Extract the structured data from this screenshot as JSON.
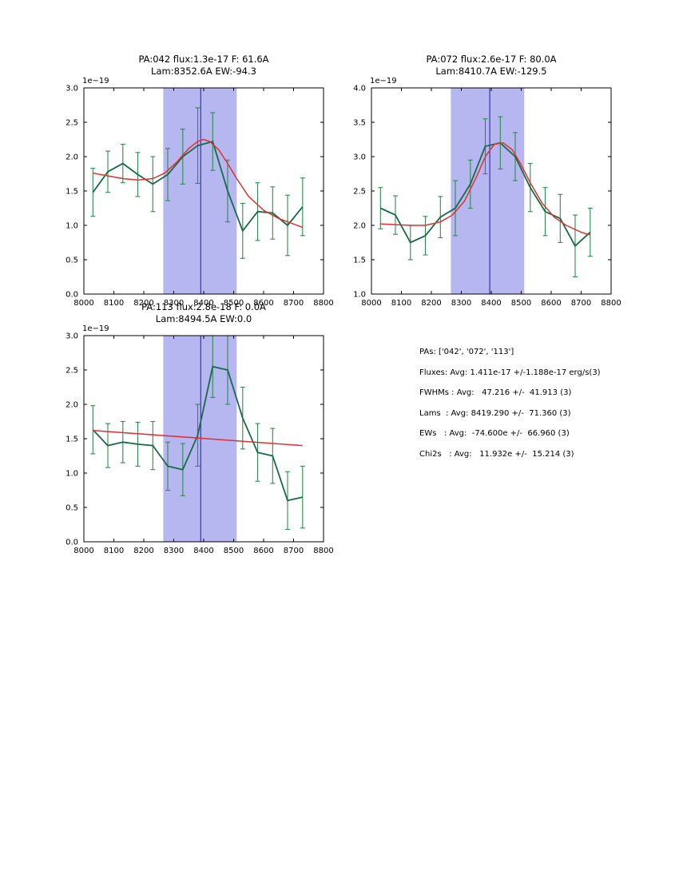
{
  "figure": {
    "background": "#ffffff",
    "band_color": "#b6b6f0",
    "vline_color": "#3333bb",
    "axis_color": "#000000"
  },
  "chart_data": [
    {
      "type": "line",
      "title_line1": "PA:042 flux:1.3e-17 F: 61.6A",
      "title_line2": "Lam:8352.6A EW:-94.3",
      "scale_label": "1e−19",
      "xlabel": "",
      "ylabel": "",
      "xlim": [
        8000,
        8800
      ],
      "ylim": [
        0.0,
        3.0
      ],
      "xticks": [
        8000,
        8100,
        8200,
        8300,
        8400,
        8500,
        8600,
        8700,
        8800
      ],
      "yticks": [
        0.0,
        0.5,
        1.0,
        1.5,
        2.0,
        2.5,
        3.0
      ],
      "band": {
        "x0": 8265,
        "x1": 8510
      },
      "vline_x": 8390,
      "series": [
        {
          "name": "spectrum",
          "color": "#176a47",
          "err_color": "#2e8b50",
          "line_width": 1.8,
          "x": [
            8030,
            8080,
            8130,
            8180,
            8230,
            8280,
            8330,
            8380,
            8430,
            8480,
            8530,
            8580,
            8630,
            8680,
            8730
          ],
          "y": [
            1.48,
            1.78,
            1.9,
            1.74,
            1.6,
            1.74,
            2.0,
            2.16,
            2.22,
            1.5,
            0.92,
            1.2,
            1.18,
            1.0,
            1.27
          ],
          "yerr": [
            0.35,
            0.3,
            0.28,
            0.32,
            0.4,
            0.38,
            0.4,
            0.55,
            0.42,
            0.45,
            0.4,
            0.42,
            0.38,
            0.44,
            0.42
          ]
        },
        {
          "name": "gaussian-fit",
          "color": "#e03030",
          "line_width": 1.5,
          "x": [
            8030,
            8080,
            8130,
            8180,
            8230,
            8270,
            8310,
            8350,
            8380,
            8400,
            8420,
            8450,
            8480,
            8510,
            8550,
            8600,
            8650,
            8700,
            8730
          ],
          "y": [
            1.76,
            1.72,
            1.68,
            1.66,
            1.68,
            1.76,
            1.92,
            2.12,
            2.22,
            2.25,
            2.22,
            2.1,
            1.9,
            1.68,
            1.42,
            1.22,
            1.1,
            1.02,
            0.97
          ]
        }
      ]
    },
    {
      "type": "line",
      "title_line1": "PA:072 flux:2.6e-17 F: 80.0A",
      "title_line2": "Lam:8410.7A EW:-129.5",
      "scale_label": "1e−19",
      "xlabel": "",
      "ylabel": "",
      "xlim": [
        8000,
        8800
      ],
      "ylim": [
        1.0,
        4.0
      ],
      "xticks": [
        8000,
        8100,
        8200,
        8300,
        8400,
        8500,
        8600,
        8700,
        8800
      ],
      "yticks": [
        1.0,
        1.5,
        2.0,
        2.5,
        3.0,
        3.5,
        4.0
      ],
      "band": {
        "x0": 8265,
        "x1": 8510
      },
      "vline_x": 8395,
      "series": [
        {
          "name": "spectrum",
          "color": "#176a47",
          "err_color": "#2e8b50",
          "line_width": 1.8,
          "x": [
            8030,
            8080,
            8130,
            8180,
            8230,
            8280,
            8330,
            8380,
            8430,
            8480,
            8530,
            8580,
            8630,
            8680,
            8730
          ],
          "y": [
            2.25,
            2.15,
            1.75,
            1.85,
            2.12,
            2.25,
            2.6,
            3.15,
            3.2,
            3.0,
            2.55,
            2.2,
            2.1,
            1.7,
            1.9
          ],
          "yerr": [
            0.3,
            0.28,
            0.25,
            0.28,
            0.3,
            0.4,
            0.35,
            0.4,
            0.38,
            0.35,
            0.35,
            0.35,
            0.35,
            0.45,
            0.35
          ]
        },
        {
          "name": "gaussian-fit",
          "color": "#e03030",
          "line_width": 1.5,
          "x": [
            8030,
            8080,
            8130,
            8180,
            8230,
            8270,
            8310,
            8350,
            8380,
            8410,
            8440,
            8470,
            8500,
            8530,
            8570,
            8610,
            8650,
            8700,
            8730
          ],
          "y": [
            2.02,
            2.01,
            2.0,
            2.0,
            2.05,
            2.15,
            2.35,
            2.7,
            3.0,
            3.18,
            3.2,
            3.1,
            2.88,
            2.62,
            2.32,
            2.12,
            2.0,
            1.9,
            1.86
          ]
        }
      ]
    },
    {
      "type": "line",
      "title_line1": "PA:113 flux:2.8e-18 F: 0.0A",
      "title_line2": "Lam:8494.5A EW:0.0",
      "scale_label": "1e−19",
      "xlabel": "",
      "ylabel": "",
      "xlim": [
        8000,
        8800
      ],
      "ylim": [
        0.0,
        3.0
      ],
      "xticks": [
        8000,
        8100,
        8200,
        8300,
        8400,
        8500,
        8600,
        8700,
        8800
      ],
      "yticks": [
        0.0,
        0.5,
        1.0,
        1.5,
        2.0,
        2.5,
        3.0
      ],
      "band": {
        "x0": 8265,
        "x1": 8510
      },
      "vline_x": 8390,
      "series": [
        {
          "name": "spectrum",
          "color": "#176a47",
          "err_color": "#2e8b50",
          "line_width": 1.8,
          "x": [
            8030,
            8080,
            8130,
            8180,
            8230,
            8280,
            8330,
            8380,
            8430,
            8480,
            8530,
            8580,
            8630,
            8680,
            8730
          ],
          "y": [
            1.63,
            1.4,
            1.45,
            1.42,
            1.4,
            1.1,
            1.05,
            1.55,
            2.55,
            2.5,
            1.8,
            1.3,
            1.25,
            0.6,
            0.65
          ],
          "yerr": [
            0.35,
            0.32,
            0.3,
            0.32,
            0.35,
            0.35,
            0.38,
            0.45,
            0.45,
            0.5,
            0.45,
            0.42,
            0.4,
            0.42,
            0.45
          ]
        },
        {
          "name": "flat-fit",
          "color": "#e03030",
          "line_width": 1.5,
          "x": [
            8030,
            8730
          ],
          "y": [
            1.62,
            1.4
          ]
        }
      ]
    }
  ],
  "summary": {
    "lines": [
      "PAs: ['042', '072', '113']",
      "Fluxes: Avg: 1.411e-17 +/-1.188e-17 erg/s(3)",
      "FWHMs : Avg:   47.216 +/-  41.913 (3)",
      "Lams  : Avg: 8419.290 +/-  71.360 (3)",
      "EWs   : Avg:  -74.600e +/-  66.960 (3)",
      "Chi2s   : Avg:   11.932e +/-  15.214 (3)"
    ]
  }
}
